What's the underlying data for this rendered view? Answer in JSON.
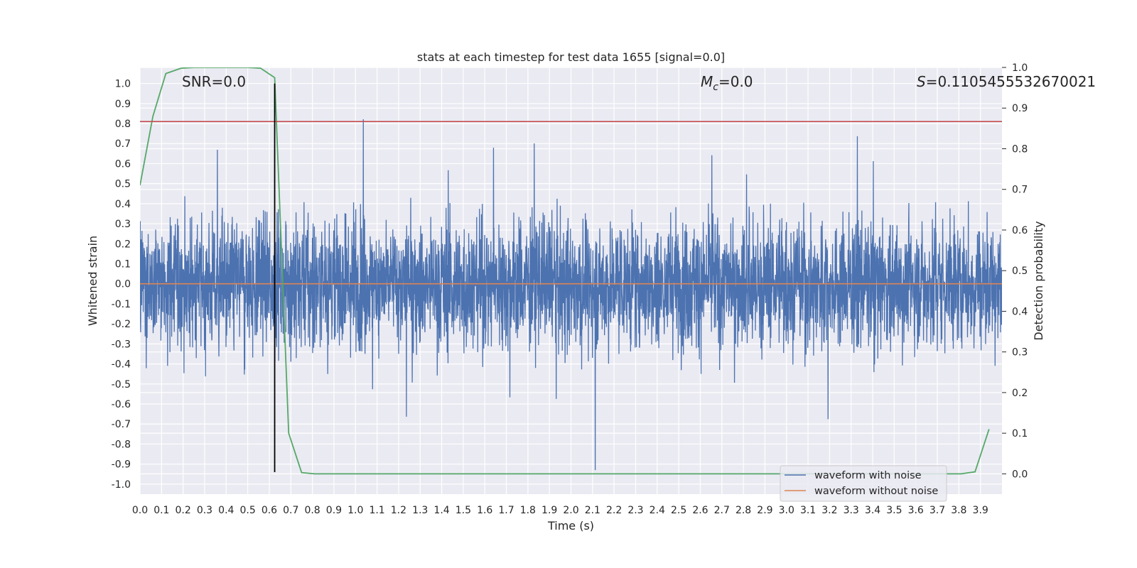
{
  "chart_data": {
    "type": "line",
    "title": "stats at each timestep for test data 1655 [signal=0.0]",
    "xlabel": "Time (s)",
    "ylabel": "Whitened strain",
    "ylabel_right": "Detection probability",
    "xlim": [
      0.0,
      4.0
    ],
    "ylim": [
      -1.05,
      1.08
    ],
    "ylim_right": [
      -0.05,
      1.0
    ],
    "x_ticks": [
      "0.0",
      "0.1",
      "0.2",
      "0.3",
      "0.4",
      "0.5",
      "0.6",
      "0.7",
      "0.8",
      "0.9",
      "1.0",
      "1.1",
      "1.2",
      "1.3",
      "1.4",
      "1.5",
      "1.6",
      "1.7",
      "1.8",
      "1.9",
      "2.0",
      "2.1",
      "2.2",
      "2.3",
      "2.4",
      "2.5",
      "2.6",
      "2.7",
      "2.8",
      "2.9",
      "3.0",
      "3.1",
      "3.2",
      "3.3",
      "3.4",
      "3.5",
      "3.6",
      "3.7",
      "3.8",
      "3.9"
    ],
    "y_ticks": [
      "1.0",
      "0.9",
      "0.8",
      "0.7",
      "0.6",
      "0.5",
      "0.4",
      "0.3",
      "0.2",
      "0.1",
      "0.0",
      "-0.1",
      "-0.2",
      "-0.3",
      "-0.4",
      "-0.5",
      "-0.6",
      "-0.7",
      "-0.8",
      "-0.9",
      "-1.0"
    ],
    "y_ticks_right": [
      "1.0",
      "0.9",
      "0.8",
      "0.7",
      "0.6",
      "0.5",
      "0.4",
      "0.3",
      "0.2",
      "0.1",
      "0.0"
    ],
    "grid": true,
    "legend_position": "bottom-right",
    "annotations": [
      {
        "text": "SNR=0.0"
      },
      {
        "text_italic": "M",
        "sub": "c",
        "text_rest": "=0.0"
      },
      {
        "text_italic": "S",
        "text_rest": "=0.1105455532670021"
      }
    ],
    "series": [
      {
        "name": "waveform with noise",
        "axis": "left",
        "color": "#4c72b0",
        "kind": "noise",
        "amplitude_typical": 0.22,
        "max": 1.0,
        "min": -0.93
      },
      {
        "name": "waveform without noise",
        "axis": "left",
        "color": "#dd8452",
        "values_constant": 0.0
      },
      {
        "axis": "right",
        "color": "#55a868",
        "x": [
          0.0,
          0.06,
          0.12,
          0.19,
          0.25,
          0.31,
          0.37,
          0.44,
          0.5,
          0.56,
          0.625,
          0.69,
          0.75,
          0.81,
          0.875,
          1.0,
          2.0,
          3.0,
          3.5,
          3.75,
          3.81,
          3.875,
          3.94
        ],
        "y": [
          0.71,
          0.88,
          0.985,
          0.998,
          1.0,
          1.0,
          1.0,
          1.0,
          1.0,
          0.998,
          0.975,
          0.1,
          0.003,
          0.0,
          0.0,
          0.0,
          0.0,
          0.0,
          0.0,
          0.0,
          0.0,
          0.005,
          0.11
        ]
      },
      {
        "axis": "left",
        "color": "#c44e52",
        "kind": "hline",
        "y": 0.81
      },
      {
        "axis": "left",
        "color": "#000000",
        "kind": "vline",
        "x": 0.625,
        "y_range": [
          -0.94,
          1.0
        ]
      }
    ]
  }
}
